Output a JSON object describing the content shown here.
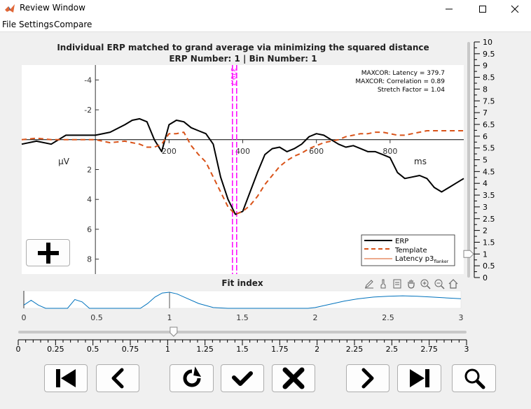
{
  "window": {
    "title": "Review Window"
  },
  "menu": [
    "File",
    "Settings",
    "Compare"
  ],
  "main_plot": {
    "title_line1": "Individual ERP matched to grand average via minimizing the squared distance",
    "title_line2": "ERP Number: 1 | Bin Number: 1",
    "ylabel": "μV",
    "xlabel": "ms",
    "y_ticks": [
      "-4",
      "-2",
      "2",
      "4",
      "6",
      "8"
    ],
    "x_ticks": [
      "200",
      "400",
      "600",
      "800"
    ],
    "info_latency": "MAXCOR: Latency = 379.7",
    "info_correlation": "MAXCOR: Correlation = 0.89",
    "info_stretch": "Stretch Factor = 1.04",
    "latency_marker_label": "379.7",
    "legend": {
      "erp": "ERP",
      "template": "Template",
      "latency": "Latency  p3",
      "latency_sub": "flanker"
    }
  },
  "fit_plot": {
    "title": "Fit index",
    "x_ticks": [
      "0",
      "0.5",
      "1",
      "1.5",
      "2",
      "2.5",
      "3"
    ]
  },
  "slider": {
    "value": 1.04,
    "min": 0,
    "max": 3,
    "ticks": [
      "0",
      "0.25",
      "0.5",
      "0.75",
      "1",
      "1.25",
      "1.5",
      "1.75",
      "2",
      "2.25",
      "2.5",
      "2.75",
      "3"
    ]
  },
  "vslider": {
    "value": 1.0,
    "min": 0,
    "max": 10,
    "ticks": [
      "10",
      "9.5",
      "9",
      "8.5",
      "8",
      "7.5",
      "7",
      "6.5",
      "6",
      "5.5",
      "5",
      "4.5",
      "4",
      "3.5",
      "3",
      "2.5",
      "2",
      "1.5",
      "1",
      "0.5",
      "0"
    ]
  },
  "chart_data": {
    "type": "line",
    "title": "Individual ERP matched to grand average via minimizing the squared distance",
    "subtitle": "ERP Number: 1 | Bin Number: 1",
    "xlabel": "ms",
    "ylabel": "μV",
    "xlim": [
      -200,
      1000
    ],
    "ylim": [
      -5,
      9
    ],
    "y_reversed": true,
    "series": [
      {
        "name": "ERP",
        "color": "#000000",
        "style": "solid",
        "x": [
          -200,
          -160,
          -120,
          -80,
          -40,
          0,
          40,
          80,
          100,
          120,
          140,
          160,
          180,
          200,
          220,
          240,
          260,
          280,
          300,
          320,
          340,
          360,
          380,
          400,
          420,
          440,
          460,
          480,
          500,
          520,
          540,
          560,
          580,
          600,
          620,
          640,
          660,
          680,
          700,
          720,
          740,
          760,
          780,
          800,
          820,
          840,
          860,
          880,
          900,
          920,
          940,
          960,
          980,
          1000
        ],
        "y": [
          0.3,
          0.1,
          0.3,
          -0.3,
          -0.3,
          -0.3,
          -0.5,
          -1.0,
          -1.3,
          -1.4,
          -1.2,
          0.0,
          0.8,
          -1.0,
          -1.3,
          -1.2,
          -0.8,
          -0.6,
          -0.4,
          0.3,
          2.5,
          4.0,
          5.0,
          4.8,
          3.5,
          2.2,
          1.0,
          0.6,
          0.5,
          0.8,
          0.6,
          0.3,
          -0.2,
          -0.4,
          -0.3,
          0.0,
          0.3,
          0.5,
          0.4,
          0.6,
          0.8,
          0.8,
          1.0,
          1.2,
          2.2,
          2.6,
          2.5,
          2.4,
          2.6,
          3.2,
          3.5,
          3.2,
          2.9,
          2.6
        ]
      },
      {
        "name": "Template",
        "color": "#d95319",
        "style": "dashed",
        "x": [
          -200,
          -160,
          -120,
          -80,
          -40,
          0,
          40,
          80,
          100,
          120,
          140,
          160,
          180,
          200,
          220,
          240,
          260,
          280,
          300,
          320,
          340,
          360,
          380,
          400,
          420,
          440,
          460,
          480,
          500,
          520,
          540,
          560,
          580,
          600,
          620,
          640,
          660,
          680,
          700,
          720,
          740,
          760,
          780,
          800,
          820,
          840,
          860,
          880,
          900,
          920,
          940,
          960,
          980,
          1000
        ],
        "y": [
          0.0,
          -0.1,
          0.0,
          0.0,
          0.0,
          0.0,
          0.2,
          0.1,
          0.2,
          0.3,
          0.5,
          0.5,
          0.3,
          -0.4,
          -0.4,
          -0.5,
          0.4,
          1.0,
          1.5,
          2.5,
          3.5,
          4.5,
          5.0,
          4.8,
          4.4,
          3.8,
          3.0,
          2.4,
          1.8,
          1.4,
          1.1,
          0.9,
          0.6,
          0.4,
          0.2,
          0.1,
          0.0,
          -0.2,
          -0.3,
          -0.4,
          -0.4,
          -0.5,
          -0.5,
          -0.4,
          -0.3,
          -0.3,
          -0.4,
          -0.5,
          -0.6,
          -0.6,
          -0.6,
          -0.6,
          -0.6,
          -0.6
        ]
      }
    ],
    "latency_ms": 379.7
  },
  "fit_chart": {
    "type": "line",
    "color": "#0072bd",
    "xlim": [
      0,
      3
    ],
    "x": [
      0,
      0.05,
      0.1,
      0.15,
      0.2,
      0.25,
      0.3,
      0.35,
      0.4,
      0.45,
      0.5,
      0.6,
      0.7,
      0.8,
      0.85,
      0.9,
      0.95,
      1.0,
      1.05,
      1.1,
      1.2,
      1.3,
      1.4,
      1.45,
      1.5,
      1.6,
      1.7,
      1.8,
      1.9,
      1.95,
      2.0,
      2.1,
      2.2,
      2.3,
      2.4,
      2.5,
      2.6,
      2.7,
      2.8,
      2.9,
      3.0
    ],
    "y": [
      0.2,
      0.5,
      0.2,
      0.0,
      0.0,
      0.0,
      0.0,
      0.55,
      0.4,
      0.0,
      0.0,
      0.0,
      0.0,
      0.0,
      0.3,
      0.7,
      0.95,
      1.0,
      0.9,
      0.7,
      0.3,
      0.05,
      0.0,
      0.0,
      0.0,
      0.0,
      0.0,
      0.0,
      0.0,
      0.0,
      0.05,
      0.25,
      0.45,
      0.6,
      0.7,
      0.75,
      0.78,
      0.75,
      0.7,
      0.65,
      0.6
    ]
  }
}
